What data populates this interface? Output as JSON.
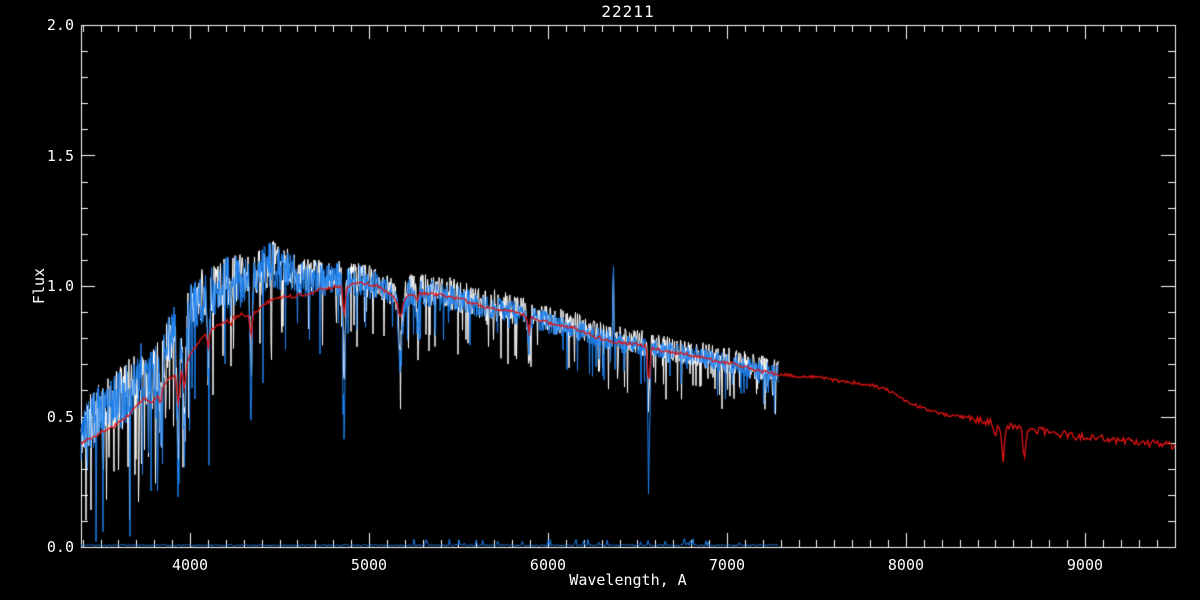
{
  "window": {
    "background": "#000000"
  },
  "chart_data": {
    "type": "line",
    "title": "22211",
    "xlabel": "Wavelength, A",
    "ylabel": "Flux",
    "xlim": [
      3391,
      9503
    ],
    "ylim": [
      0.0,
      2.0
    ],
    "grid": false,
    "legend": null,
    "frame_color": "#FFFFFF",
    "background": "#000000",
    "text_color": "#FFFFFF",
    "x_major_ticks": [
      4000,
      5000,
      6000,
      7000,
      8000,
      9000
    ],
    "x_tick_labels": [
      "4000",
      "5000",
      "6000",
      "7000",
      "8000",
      "9000"
    ],
    "x_minor_step": 100,
    "y_major_ticks": [
      0.0,
      0.5,
      1.0,
      1.5,
      2.0
    ],
    "y_tick_labels": [
      "0.0",
      "0.5",
      "1.0",
      "1.5",
      "2.0"
    ],
    "y_minor_step": 0.1,
    "continua": {
      "observed": [
        [
          3391,
          0.43
        ],
        [
          3450,
          0.48
        ],
        [
          3510,
          0.52
        ],
        [
          3570,
          0.54
        ],
        [
          3630,
          0.58
        ],
        [
          3690,
          0.63
        ],
        [
          3740,
          0.66
        ],
        [
          3790,
          0.63
        ],
        [
          3840,
          0.72
        ],
        [
          3890,
          0.8
        ],
        [
          3940,
          0.83
        ],
        [
          3990,
          0.88
        ],
        [
          4040,
          0.95
        ],
        [
          4100,
          0.97
        ],
        [
          4160,
          1.0
        ],
        [
          4220,
          1.01
        ],
        [
          4280,
          1.02
        ],
        [
          4340,
          1.03
        ],
        [
          4400,
          1.05
        ],
        [
          4460,
          1.08
        ],
        [
          4520,
          1.07
        ],
        [
          4580,
          1.04
        ],
        [
          4650,
          1.03
        ],
        [
          4750,
          1.03
        ],
        [
          4850,
          1.02
        ],
        [
          4950,
          1.02
        ],
        [
          5050,
          1.0
        ],
        [
          5170,
          0.96
        ],
        [
          5250,
          0.98
        ],
        [
          5350,
          0.97
        ],
        [
          5450,
          0.96
        ],
        [
          5550,
          0.94
        ],
        [
          5650,
          0.92
        ],
        [
          5750,
          0.91
        ],
        [
          5850,
          0.89
        ],
        [
          5950,
          0.87
        ],
        [
          6050,
          0.85
        ],
        [
          6150,
          0.84
        ],
        [
          6250,
          0.81
        ],
        [
          6350,
          0.79
        ],
        [
          6450,
          0.78
        ],
        [
          6550,
          0.77
        ],
        [
          6650,
          0.75
        ],
        [
          6750,
          0.74
        ],
        [
          6850,
          0.73
        ],
        [
          6950,
          0.71
        ],
        [
          7050,
          0.7
        ],
        [
          7150,
          0.68
        ],
        [
          7290,
          0.66
        ]
      ],
      "template": [
        [
          3391,
          0.4
        ],
        [
          3450,
          0.42
        ],
        [
          3510,
          0.44
        ],
        [
          3570,
          0.46
        ],
        [
          3630,
          0.49
        ],
        [
          3690,
          0.53
        ],
        [
          3740,
          0.57
        ],
        [
          3790,
          0.55
        ],
        [
          3840,
          0.6
        ],
        [
          3890,
          0.65
        ],
        [
          3940,
          0.67
        ],
        [
          3990,
          0.72
        ],
        [
          4040,
          0.78
        ],
        [
          4100,
          0.82
        ],
        [
          4160,
          0.85
        ],
        [
          4220,
          0.87
        ],
        [
          4280,
          0.89
        ],
        [
          4340,
          0.89
        ],
        [
          4400,
          0.92
        ],
        [
          4460,
          0.95
        ],
        [
          4520,
          0.96
        ],
        [
          4580,
          0.96
        ],
        [
          4650,
          0.97
        ],
        [
          4750,
          0.99
        ],
        [
          4850,
          1.0
        ],
        [
          4950,
          1.01
        ],
        [
          5050,
          1.0
        ],
        [
          5170,
          0.94
        ],
        [
          5250,
          0.97
        ],
        [
          5350,
          0.97
        ],
        [
          5450,
          0.96
        ],
        [
          5550,
          0.94
        ],
        [
          5650,
          0.92
        ],
        [
          5750,
          0.91
        ],
        [
          5850,
          0.89
        ],
        [
          5950,
          0.87
        ],
        [
          6050,
          0.85
        ],
        [
          6150,
          0.84
        ],
        [
          6250,
          0.81
        ],
        [
          6350,
          0.79
        ],
        [
          6450,
          0.78
        ],
        [
          6550,
          0.77
        ],
        [
          6650,
          0.75
        ],
        [
          6750,
          0.74
        ],
        [
          6850,
          0.73
        ],
        [
          6950,
          0.71
        ],
        [
          7050,
          0.7
        ],
        [
          7150,
          0.68
        ],
        [
          7290,
          0.66
        ],
        [
          7400,
          0.655
        ],
        [
          7500,
          0.65
        ],
        [
          7600,
          0.64
        ],
        [
          7700,
          0.63
        ],
        [
          7800,
          0.62
        ],
        [
          7900,
          0.6
        ],
        [
          8000,
          0.56
        ],
        [
          8100,
          0.53
        ],
        [
          8200,
          0.51
        ],
        [
          8300,
          0.5
        ],
        [
          8400,
          0.49
        ],
        [
          8500,
          0.47
        ],
        [
          8600,
          0.46
        ],
        [
          8700,
          0.45
        ],
        [
          8800,
          0.44
        ],
        [
          8900,
          0.43
        ],
        [
          9000,
          0.42
        ],
        [
          9100,
          0.415
        ],
        [
          9200,
          0.41
        ],
        [
          9300,
          0.4
        ],
        [
          9400,
          0.395
        ],
        [
          9503,
          0.385
        ]
      ]
    },
    "absorption_features": [
      {
        "c": 3835,
        "w": 6,
        "blue": 0.28,
        "white": 0.22,
        "red": 0.05
      },
      {
        "c": 3934,
        "w": 7,
        "blue": 0.6,
        "white": 0.48,
        "red": 0.12
      },
      {
        "c": 3969,
        "w": 7,
        "blue": 0.5,
        "white": 0.42,
        "red": 0.09
      },
      {
        "c": 4102,
        "w": 6,
        "blue": 0.36,
        "white": 0.28,
        "red": 0.06
      },
      {
        "c": 4227,
        "w": 4,
        "blue": 0.16,
        "white": 0.1,
        "red": 0.03
      },
      {
        "c": 4341,
        "w": 6,
        "blue": 0.5,
        "white": 0.36,
        "red": 0.09
      },
      {
        "c": 4861,
        "w": 6,
        "blue": 0.55,
        "white": 0.38,
        "red": 0.12
      },
      {
        "c": 5175,
        "w": 11,
        "blue": 0.26,
        "white": 0.18,
        "red": 0.06
      },
      {
        "c": 5269,
        "w": 5,
        "blue": 0.13,
        "white": 0.08,
        "red": 0.03
      },
      {
        "c": 5893,
        "w": 5,
        "blue": 0.13,
        "white": 0.2,
        "red": 0.06
      },
      {
        "c": 6563,
        "w": 6,
        "blue": 0.46,
        "white": 0.22,
        "red": 0.15
      },
      {
        "c": 8498,
        "w": 6,
        "blue": 0,
        "white": 0,
        "red": 0.05
      },
      {
        "c": 8542,
        "w": 7,
        "blue": 0,
        "white": 0,
        "red": 0.14
      },
      {
        "c": 8662,
        "w": 7,
        "blue": 0,
        "white": 0,
        "red": 0.12
      }
    ],
    "emission_spike": {
      "c": 6365,
      "w": 2.5,
      "blue": 0.28,
      "white": 0.31
    },
    "series": [
      {
        "name": "observed-spectrum-overlay",
        "color": "#FFFFFF",
        "kind": "noisy",
        "continuum": "observed",
        "feature_key": "white",
        "x_range": [
          3391,
          7290
        ],
        "seed": 11,
        "noise_amp": [
          [
            3391,
            0.1
          ],
          [
            3700,
            0.12
          ],
          [
            4000,
            0.1
          ],
          [
            4400,
            0.09
          ],
          [
            4700,
            0.065
          ],
          [
            5100,
            0.06
          ],
          [
            5500,
            0.065
          ],
          [
            6000,
            0.055
          ],
          [
            6500,
            0.05
          ],
          [
            7290,
            0.05
          ]
        ],
        "outlier_p": 0.08,
        "offset": 0.01
      },
      {
        "name": "observed-spectrum",
        "color": "#1E82F0",
        "kind": "noisy",
        "continuum": "observed",
        "feature_key": "blue",
        "x_range": [
          3391,
          7290
        ],
        "seed": 7,
        "noise_amp": [
          [
            3391,
            0.1
          ],
          [
            3700,
            0.13
          ],
          [
            4000,
            0.11
          ],
          [
            4400,
            0.1
          ],
          [
            4700,
            0.07
          ],
          [
            5100,
            0.055
          ],
          [
            5500,
            0.05
          ],
          [
            6000,
            0.042
          ],
          [
            6500,
            0.038
          ],
          [
            7290,
            0.038
          ]
        ],
        "outlier_p": 0.05,
        "offset": 0.0
      },
      {
        "name": "error-spectrum",
        "color": "#1E82F0",
        "kind": "error",
        "x_range": [
          3391,
          7290
        ],
        "seed": 5,
        "base": 0.007
      },
      {
        "name": "template-spectrum",
        "color": "#E01414",
        "kind": "smooth",
        "continuum": "template",
        "feature_key": "red",
        "x_range": [
          3391,
          9503
        ],
        "seed": 3,
        "noise_amp_flat": 0.007
      }
    ]
  }
}
